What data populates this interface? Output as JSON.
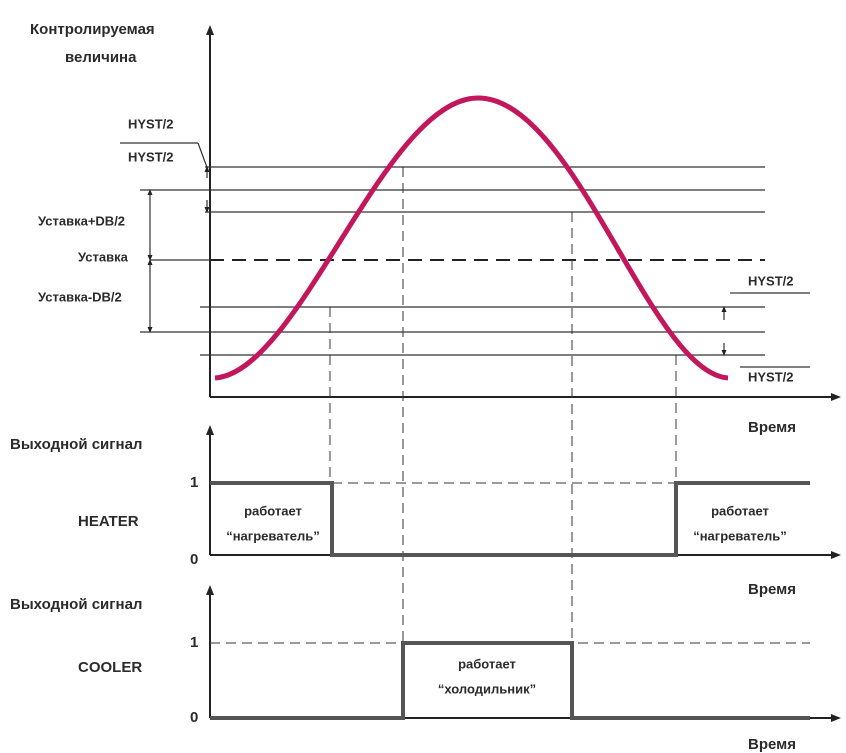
{
  "plot": {
    "axis_label": [
      "Контролируемая",
      "величина"
    ],
    "levels": {
      "hyst_top": "HYST/2",
      "hyst_second": "HYST/2",
      "setpoint_plus": "Уставка+DB/2",
      "setpoint": "Уставка",
      "setpoint_minus": "Уставка-DB/2",
      "hyst_right_top": "HYST/2",
      "hyst_right_bottom": "HYST/2"
    },
    "time": "Время"
  },
  "heater": {
    "signal": "Выходной сигнал",
    "name": "HEATER",
    "one": "1",
    "zero": "0",
    "time": "Время",
    "notes": [
      [
        "работает",
        "“нагреватель”"
      ],
      [
        "работает",
        "“нагреватель”"
      ]
    ]
  },
  "cooler": {
    "signal": "Выходной сигнал",
    "name": "COOLER",
    "one": "1",
    "zero": "0",
    "time": "Время",
    "notes": [
      [
        "работает",
        "“холодильник”"
      ]
    ]
  }
}
